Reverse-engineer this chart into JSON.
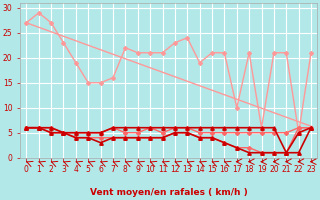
{
  "xlabel": "Vent moyen/en rafales ( km/h )",
  "bg_color": "#b2e8e8",
  "grid_color": "#ffffff",
  "xlim": [
    -0.5,
    23.5
  ],
  "ylim": [
    0,
    31
  ],
  "yticks": [
    0,
    5,
    10,
    15,
    20,
    25,
    30
  ],
  "xticks": [
    0,
    1,
    2,
    3,
    4,
    5,
    6,
    7,
    8,
    9,
    10,
    11,
    12,
    13,
    14,
    15,
    16,
    17,
    18,
    19,
    20,
    21,
    22,
    23
  ],
  "series": [
    {
      "color": "#ff9999",
      "lw": 1.0,
      "marker": "D",
      "ms": 2.0,
      "values": [
        27,
        29,
        27,
        23,
        19,
        15,
        15,
        16,
        22,
        21,
        21,
        21,
        23,
        24,
        19,
        21,
        21,
        10,
        21,
        6,
        21,
        21,
        5,
        21
      ]
    },
    {
      "color": "#ff9999",
      "lw": 1.0,
      "marker": null,
      "ms": 0,
      "values": [
        27,
        26.1,
        25.2,
        24.3,
        23.4,
        22.5,
        21.6,
        20.7,
        19.8,
        18.9,
        18.0,
        17.1,
        16.2,
        15.3,
        14.4,
        13.5,
        12.6,
        11.7,
        10.8,
        9.9,
        9.0,
        8.1,
        7.2,
        6.3
      ]
    },
    {
      "color": "#ff6666",
      "lw": 1.0,
      "marker": "D",
      "ms": 2.0,
      "values": [
        6,
        6,
        6,
        5,
        5,
        5,
        5,
        6,
        5,
        5,
        6,
        5,
        6,
        6,
        5,
        5,
        5,
        5,
        5,
        5,
        5,
        5,
        6,
        6
      ]
    },
    {
      "color": "#ff6666",
      "lw": 1.0,
      "marker": "D",
      "ms": 2.0,
      "values": [
        6,
        6,
        5,
        5,
        4,
        4,
        4,
        4,
        4,
        4,
        4,
        4,
        5,
        5,
        4,
        4,
        3,
        2,
        2,
        1,
        1,
        1,
        6,
        6
      ]
    },
    {
      "color": "#cc0000",
      "lw": 1.2,
      "marker": "^",
      "ms": 2.5,
      "values": [
        6,
        6,
        6,
        5,
        5,
        5,
        5,
        6,
        6,
        6,
        6,
        6,
        6,
        6,
        6,
        6,
        6,
        6,
        6,
        6,
        6,
        1,
        1,
        6
      ]
    },
    {
      "color": "#cc0000",
      "lw": 1.2,
      "marker": "^",
      "ms": 2.5,
      "values": [
        6,
        6,
        5,
        5,
        4,
        4,
        3,
        4,
        4,
        4,
        4,
        4,
        5,
        5,
        4,
        4,
        3,
        2,
        1,
        1,
        1,
        1,
        5,
        6
      ]
    }
  ],
  "arrow_color": "#cc0000",
  "xlabel_color": "#cc0000",
  "xlabel_fontsize": 6.5,
  "tick_fontsize": 5.5,
  "tick_color": "#cc0000"
}
